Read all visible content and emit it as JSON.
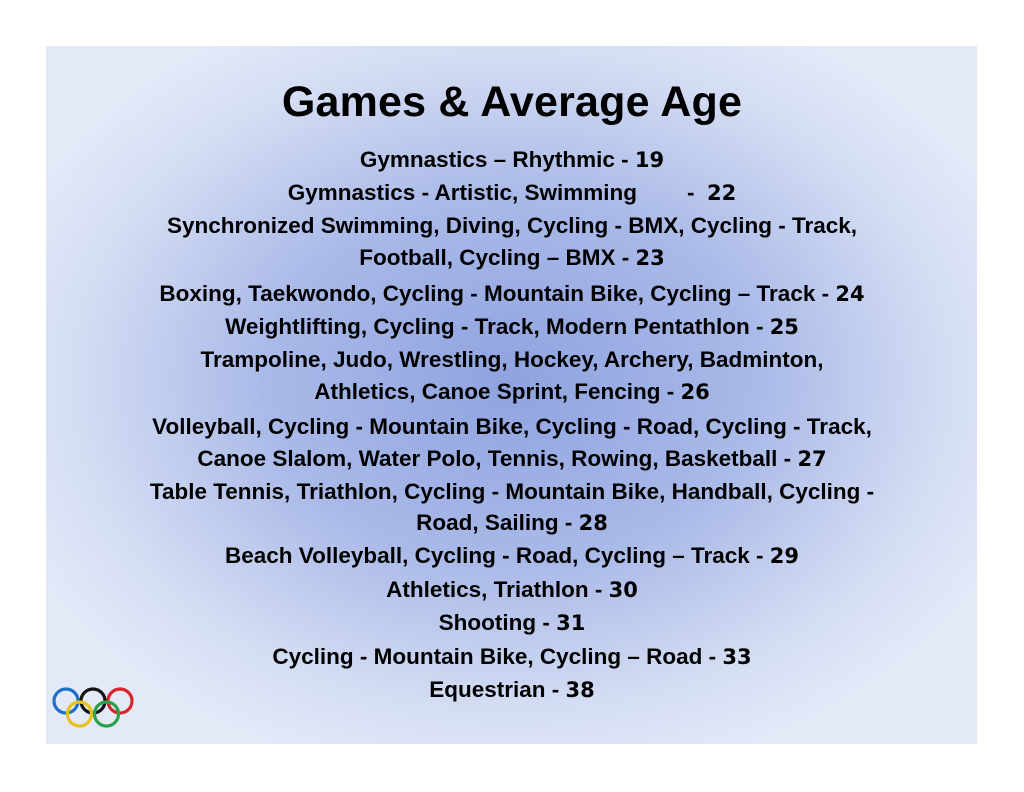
{
  "title": "Games & Average Age",
  "lines": [
    {
      "text": "Gymnastics – Rhythmic - ",
      "age": "19"
    },
    {
      "text": "Gymnastics - Artistic, Swimming        -  ",
      "age": "22"
    },
    {
      "text": "Synchronized Swimming, Diving, Cycling - BMX, Cycling - Track,",
      "age": ""
    },
    {
      "text": "Football, Cycling – BMX - ",
      "age": "23"
    },
    {
      "text": "Boxing, Taekwondo, Cycling - Mountain Bike, Cycling – Track - ",
      "age": "24"
    },
    {
      "text": "Weightlifting, Cycling - Track, Modern Pentathlon - ",
      "age": "25"
    },
    {
      "text": "Trampoline, Judo, Wrestling, Hockey, Archery, Badminton,",
      "age": ""
    },
    {
      "text": "Athletics, Canoe Sprint, Fencing - ",
      "age": "26"
    },
    {
      "text": "Volleyball, Cycling - Mountain Bike, Cycling - Road, Cycling - Track,",
      "age": ""
    },
    {
      "text": "Canoe Slalom, Water Polo, Tennis, Rowing, Basketball - ",
      "age": "27"
    },
    {
      "text": "Table Tennis, Triathlon, Cycling - Mountain Bike, Handball, Cycling -",
      "age": ""
    },
    {
      "text": "Road, Sailing - ",
      "age": "28"
    },
    {
      "text": "Beach Volleyball, Cycling - Road, Cycling – Track - ",
      "age": "29"
    },
    {
      "text": "Athletics, Triathlon - ",
      "age": "30"
    },
    {
      "text": "Shooting - ",
      "age": "31"
    },
    {
      "text": "Cycling - Mountain Bike, Cycling – Road - ",
      "age": "33"
    },
    {
      "text": "Equestrian - ",
      "age": "38"
    }
  ],
  "logo": {
    "name": "olympic-rings-icon",
    "colors": [
      "#1e6fc8",
      "#e8c21a",
      "#111111",
      "#2aa146",
      "#d8262b"
    ]
  }
}
